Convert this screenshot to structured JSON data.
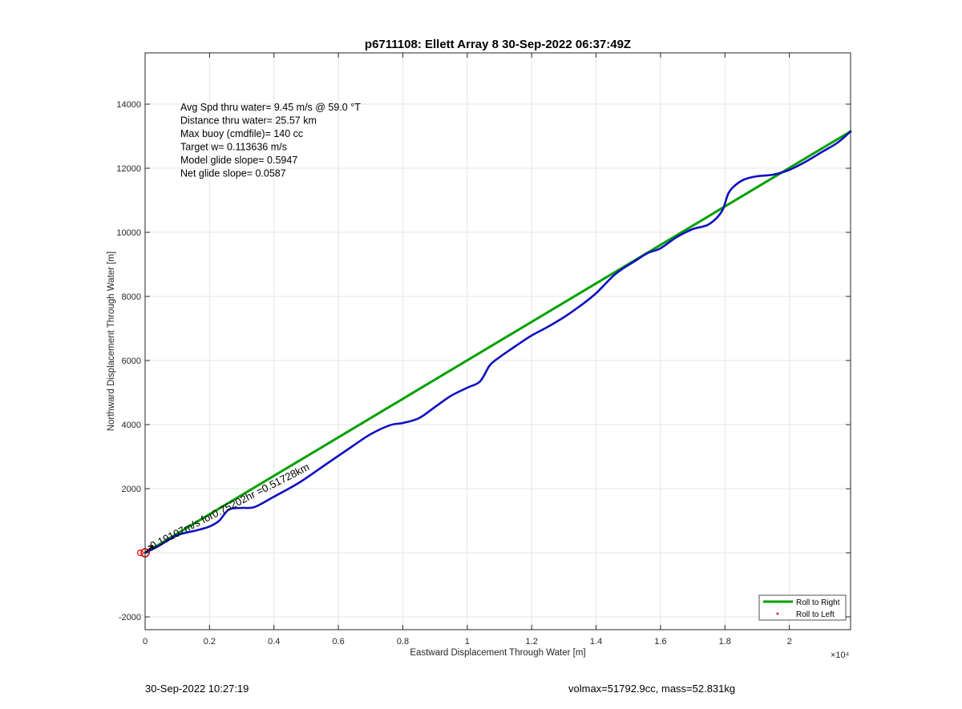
{
  "chart_data": {
    "type": "line",
    "title": "p6711108: Ellett Array 8 30-Sep-2022 06:37:49Z",
    "xlabel": "Eastward Displacement Through Water [m]",
    "ylabel": "Northward Displacement Through Water [m]",
    "x_exponent_label": "×10⁴",
    "xlim": [
      0,
      21900
    ],
    "ylim": [
      -2400,
      15600
    ],
    "x_ticks": [
      0,
      2000,
      4000,
      6000,
      8000,
      10000,
      12000,
      14000,
      16000,
      18000,
      20000
    ],
    "x_tick_labels": [
      "0",
      "0.2",
      "0.4",
      "0.6",
      "0.8",
      "1",
      "1.2",
      "1.4",
      "1.6",
      "1.8",
      "2"
    ],
    "y_ticks": [
      -2000,
      0,
      2000,
      4000,
      6000,
      8000,
      10000,
      12000,
      14000
    ],
    "y_tick_labels": [
      "-2000",
      "",
      "2000",
      "4000",
      "6000",
      "8000",
      "10000",
      "12000",
      "14000"
    ],
    "grid": true,
    "legend_position": "bottom-right",
    "legend": [
      {
        "label": "Roll to Right",
        "color": "#00a000",
        "marker": "line"
      },
      {
        "label": "Roll to Left",
        "color": "#ff0000",
        "marker": "dot"
      }
    ],
    "annotations": [
      "Avg Spd thru water=  9.45 m/s @  59.0 °T",
      "Distance thru water= 25.57 km",
      "Max buoy (cmdfile)= 140 cc",
      "Target w= 0.113636 m/s",
      "Model glide slope= 0.5947",
      "Net glide slope= 0.0587"
    ],
    "arrow_label": "0.19107m/s for0.75202hr =0.51728km",
    "start_marker": {
      "x": 0,
      "y": 0
    },
    "series": [
      {
        "name": "Roll to Right",
        "color": "#00a000",
        "x": [
          0,
          21900
        ],
        "y": [
          0,
          13150
        ]
      },
      {
        "color": "#1010c0",
        "x": [
          0,
          400,
          1000,
          1600,
          2000,
          2300,
          2600,
          3000,
          3400,
          4000,
          4800,
          5600,
          6400,
          7000,
          7600,
          8000,
          8500,
          9000,
          9500,
          10000,
          10400,
          10700,
          11000,
          11500,
          12000,
          12500,
          13000,
          13500,
          14000,
          14600,
          15200,
          15600,
          16000,
          16500,
          17000,
          17500,
          17900,
          18100,
          18300,
          18600,
          19000,
          19500,
          20000,
          20500,
          21000,
          21500,
          21900
        ],
        "y": [
          0,
          200,
          550,
          700,
          820,
          1000,
          1350,
          1400,
          1430,
          1750,
          2200,
          2750,
          3300,
          3700,
          3980,
          4050,
          4200,
          4550,
          4900,
          5150,
          5350,
          5850,
          6100,
          6450,
          6780,
          7050,
          7350,
          7700,
          8100,
          8700,
          9100,
          9350,
          9500,
          9850,
          10100,
          10250,
          10650,
          11200,
          11450,
          11650,
          11750,
          11800,
          11950,
          12200,
          12500,
          12800,
          13150
        ]
      }
    ]
  },
  "footer": {
    "timestamp": "30-Sep-2022 10:27:19",
    "mass_info": "volmax=51792.9cc, mass=52.831kg"
  }
}
